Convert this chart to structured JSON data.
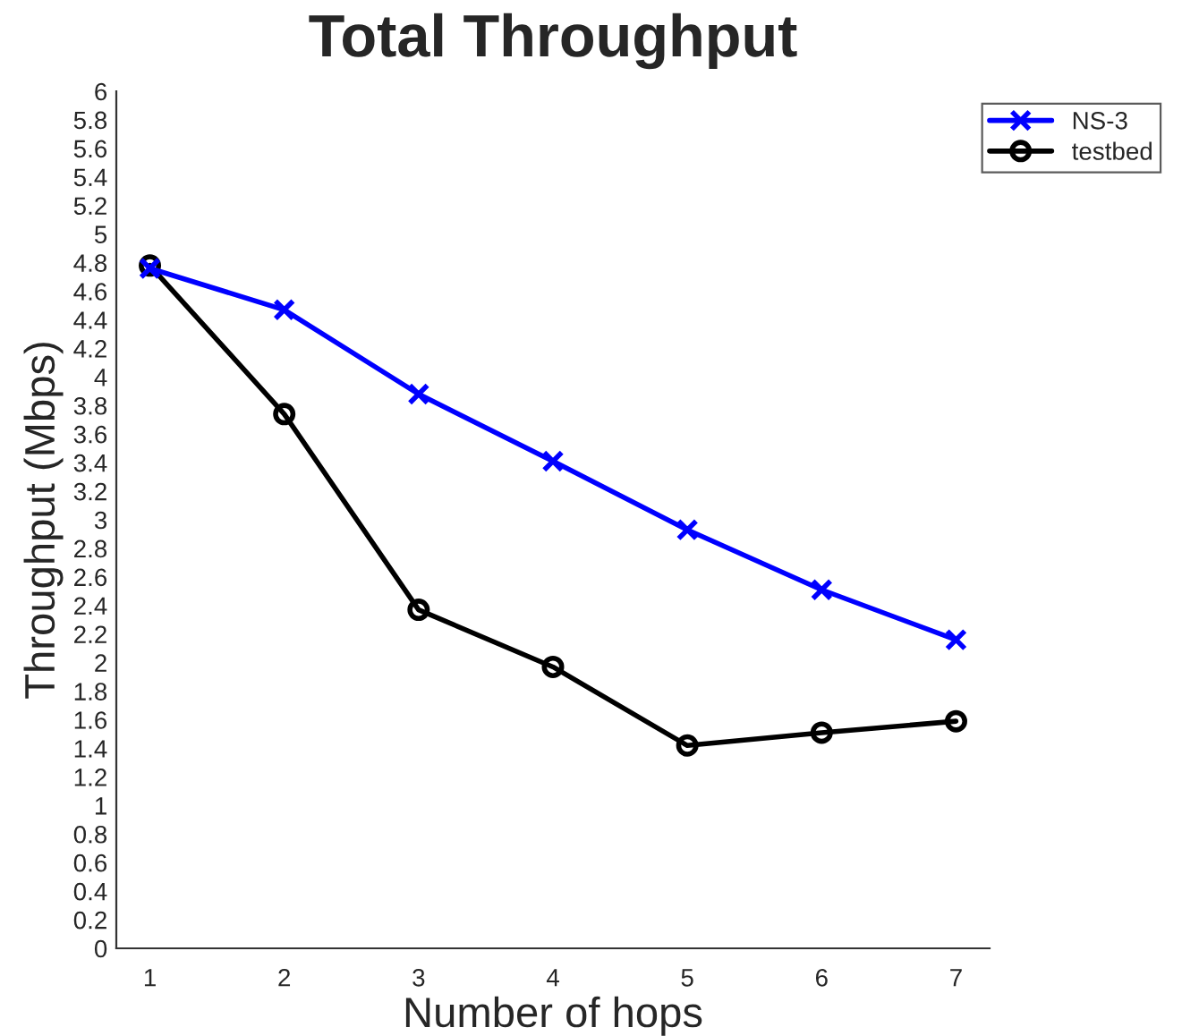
{
  "chart_data": {
    "type": "line",
    "title": "Total Throughput",
    "xlabel": "Number of hops",
    "ylabel": "Throughput (Mbps)",
    "x": [
      1,
      2,
      3,
      4,
      5,
      6,
      7
    ],
    "series": [
      {
        "name": "NS-3",
        "color": "#0000ff",
        "marker": "cross",
        "values": [
          4.76,
          4.47,
          3.88,
          3.41,
          2.93,
          2.51,
          2.16
        ]
      },
      {
        "name": "testbed",
        "color": "#000000",
        "marker": "circle",
        "values": [
          4.78,
          3.74,
          2.37,
          1.97,
          1.42,
          1.51,
          1.59
        ]
      }
    ],
    "xlim": [
      0.75,
      7.25
    ],
    "xticks": [
      1,
      2,
      3,
      4,
      5,
      6,
      7
    ],
    "ylim": [
      0,
      6
    ],
    "yticks": [
      0,
      0.2,
      0.4,
      0.6,
      0.8,
      1,
      1.2,
      1.4,
      1.6,
      1.8,
      2,
      2.2,
      2.4,
      2.6,
      2.8,
      3,
      3.2,
      3.4,
      3.6,
      3.8,
      4,
      4.2,
      4.4,
      4.6,
      4.8,
      5,
      5.2,
      5.4,
      5.6,
      5.8,
      6
    ],
    "grid": false,
    "legend": "top right",
    "line_style": "solid"
  }
}
